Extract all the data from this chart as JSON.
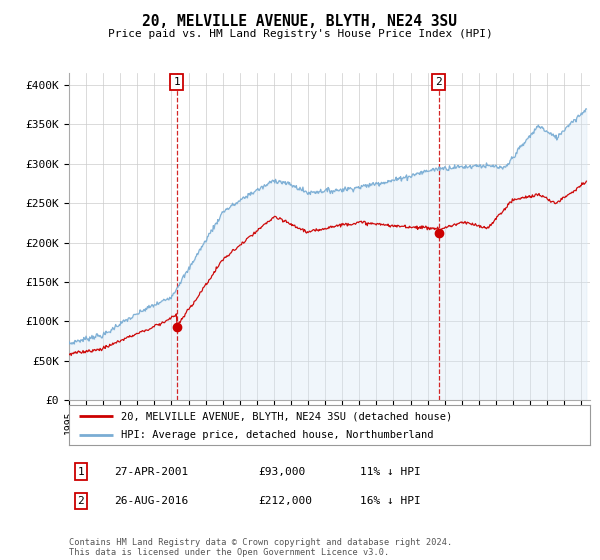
{
  "title": "20, MELVILLE AVENUE, BLYTH, NE24 3SU",
  "subtitle": "Price paid vs. HM Land Registry's House Price Index (HPI)",
  "ylabel_ticks": [
    "£0",
    "£50K",
    "£100K",
    "£150K",
    "£200K",
    "£250K",
    "£300K",
    "£350K",
    "£400K"
  ],
  "ytick_values": [
    0,
    50000,
    100000,
    150000,
    200000,
    250000,
    300000,
    350000,
    400000
  ],
  "ylim": [
    0,
    415000
  ],
  "xlim_start": 1995.0,
  "xlim_end": 2025.5,
  "legend_red": "20, MELVILLE AVENUE, BLYTH, NE24 3SU (detached house)",
  "legend_blue": "HPI: Average price, detached house, Northumberland",
  "sale1_label": "1",
  "sale1_date": "27-APR-2001",
  "sale1_price": "£93,000",
  "sale1_hpi": "11% ↓ HPI",
  "sale1_year": 2001.32,
  "sale1_value": 93000,
  "sale2_label": "2",
  "sale2_date": "26-AUG-2016",
  "sale2_price": "£212,000",
  "sale2_hpi": "16% ↓ HPI",
  "sale2_year": 2016.65,
  "sale2_value": 212000,
  "footer": "Contains HM Land Registry data © Crown copyright and database right 2024.\nThis data is licensed under the Open Government Licence v3.0.",
  "red_color": "#cc0000",
  "blue_color": "#7aadd4",
  "blue_fill": "#d6e8f5",
  "grid_color": "#cccccc",
  "background_color": "#ffffff"
}
